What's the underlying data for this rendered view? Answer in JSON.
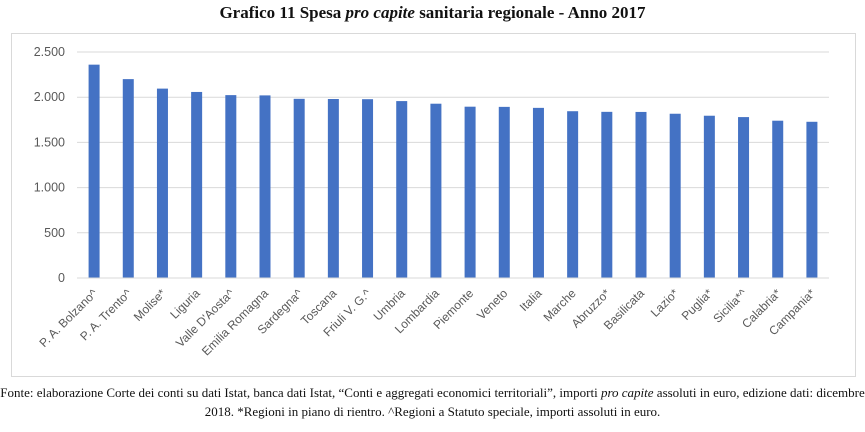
{
  "title_parts": [
    "Grafico 11 Spesa ",
    "pro capite",
    " sanitaria regionale - Anno 2017"
  ],
  "caption_parts": [
    "Fonte: elaborazione Corte dei conti su dati Istat, banca dati Istat, “Conti e aggregati economici territoriali”, importi ",
    "pro capite",
    " assoluti in euro, edizione dati: dicembre 2018. *Regioni in piano di rientro. ^Regioni a Statuto speciale, importi assoluti in euro."
  ],
  "colors": {
    "bar": "#4472c4",
    "grid": "#d9d9d9",
    "axis_text": "#595959"
  },
  "chart_data": {
    "type": "bar",
    "title": "Grafico 11 Spesa pro capite sanitaria regionale - Anno 2017",
    "xlabel": "",
    "ylabel": "",
    "ylim": [
      0,
      2500
    ],
    "yticks": [
      0,
      500,
      1000,
      1500,
      2000,
      2500
    ],
    "ytick_labels": [
      "0",
      "500",
      "1.000",
      "1.500",
      "2.000",
      "2.500"
    ],
    "grid": true,
    "categories": [
      "P. A. Bolzano^",
      "P. A. Trento^",
      "Molise*",
      "Liguria",
      "Valle D'Aosta^",
      "Emilia Romagna",
      "Sardegna^",
      "Toscana",
      "Friuli V. G.^",
      "Umbria",
      "Lombardia",
      "Piemonte",
      "Veneto",
      "Italia",
      "Marche",
      "Abruzzo*",
      "Basilicata",
      "Lazio*",
      "Puglia*",
      "Sicilia*^",
      "Calabria*",
      "Campania*"
    ],
    "values": [
      2360,
      2200,
      2095,
      2058,
      2023,
      2020,
      1982,
      1980,
      1978,
      1957,
      1928,
      1895,
      1893,
      1882,
      1845,
      1838,
      1837,
      1817,
      1795,
      1780,
      1740,
      1728
    ]
  }
}
